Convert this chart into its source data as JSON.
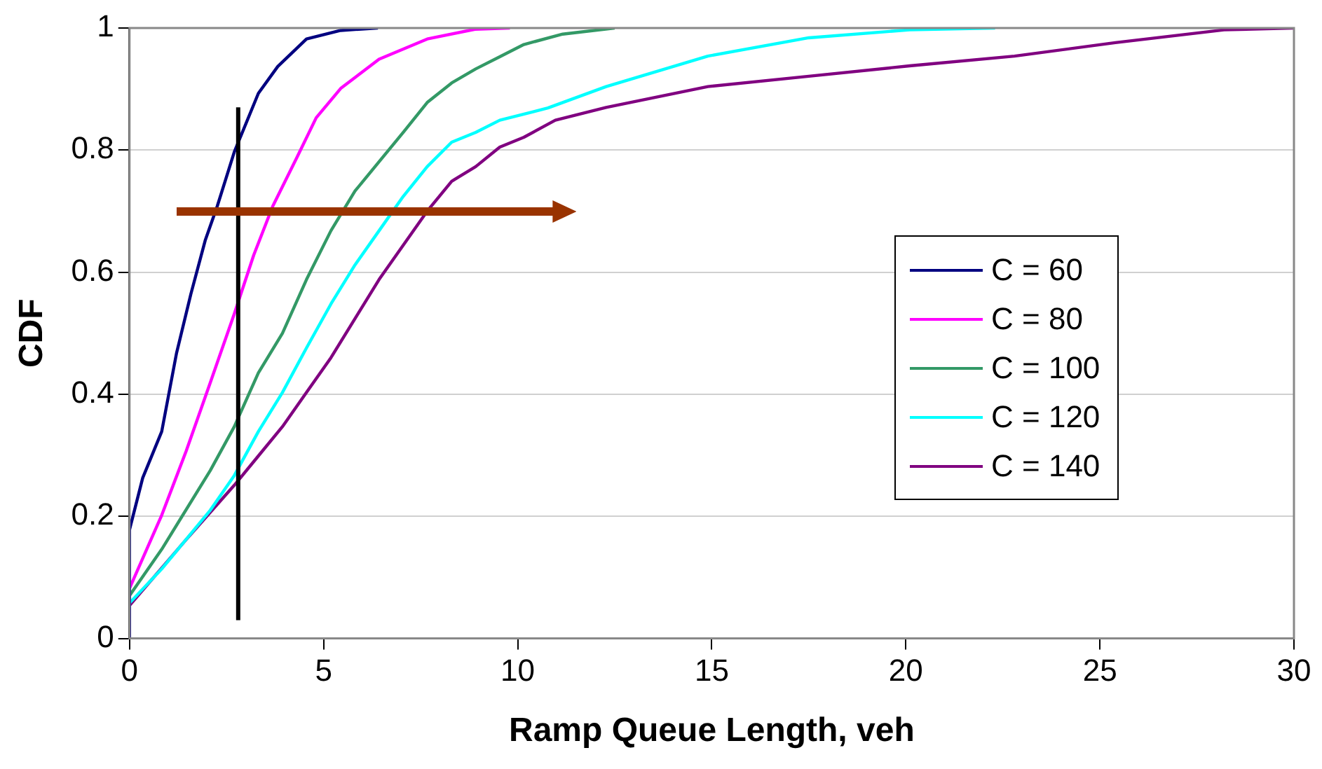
{
  "chart_data": {
    "type": "line",
    "xlabel": "Ramp Queue Length, veh",
    "ylabel": "CDF",
    "xlim": [
      0,
      30
    ],
    "xticks": [
      0,
      5,
      10,
      15,
      20,
      25,
      30
    ],
    "ylim": [
      0,
      1
    ],
    "yticks": [
      0,
      0.2,
      0.4,
      0.6,
      0.8,
      1
    ],
    "grid": "y",
    "legend": "right",
    "marker": "none",
    "line_style": "solid",
    "ref_lines": [
      {
        "axis": "x",
        "value": 2.8,
        "color": "#000000"
      }
    ],
    "series": [
      {
        "name": "C = 60",
        "color": "#000080",
        "x": [
          0,
          0,
          0.34,
          0.83,
          1.21,
          1.58,
          1.95,
          2.26,
          2.7,
          3.32,
          3.82,
          4.56,
          5.44,
          6.4
        ],
        "values": [
          0,
          0.178,
          0.263,
          0.339,
          0.467,
          0.564,
          0.652,
          0.708,
          0.797,
          0.893,
          0.937,
          0.982,
          0.996,
          1
        ]
      },
      {
        "name": "C = 80",
        "color": "#ff00ff",
        "x": [
          0,
          0,
          0.83,
          1.46,
          2.08,
          2.7,
          3.2,
          3.69,
          4.32,
          4.81,
          5.44,
          6.43,
          7.67,
          8.9,
          9.8
        ],
        "values": [
          0,
          0.082,
          0.202,
          0.307,
          0.419,
          0.532,
          0.628,
          0.708,
          0.789,
          0.853,
          0.901,
          0.949,
          0.982,
          0.998,
          1
        ]
      },
      {
        "name": "C = 100",
        "color": "#339966",
        "x": [
          0,
          0,
          0.83,
          2.08,
          2.7,
          3.32,
          3.94,
          4.56,
          5.19,
          5.81,
          6.43,
          7.05,
          7.67,
          8.3,
          8.92,
          9.54,
          10.16,
          11.16,
          12.5
        ],
        "values": [
          0,
          0.07,
          0.146,
          0.275,
          0.347,
          0.435,
          0.5,
          0.588,
          0.668,
          0.733,
          0.781,
          0.829,
          0.878,
          0.91,
          0.933,
          0.953,
          0.973,
          0.99,
          1
        ]
      },
      {
        "name": "C = 120",
        "color": "#00ffff",
        "x": [
          0,
          0,
          0.83,
          2.08,
          2.7,
          3.32,
          3.94,
          4.56,
          5.19,
          5.81,
          6.43,
          7.05,
          7.67,
          8.3,
          8.92,
          9.54,
          10.78,
          12.28,
          14.9,
          17.5,
          20.1,
          22.3
        ],
        "values": [
          0,
          0.058,
          0.114,
          0.21,
          0.267,
          0.339,
          0.403,
          0.476,
          0.548,
          0.612,
          0.668,
          0.724,
          0.773,
          0.813,
          0.829,
          0.849,
          0.869,
          0.904,
          0.954,
          0.984,
          0.997,
          1
        ]
      },
      {
        "name": "C = 140",
        "color": "#800080",
        "x": [
          0,
          0,
          1.46,
          2.7,
          3.32,
          3.94,
          4.56,
          5.19,
          5.81,
          6.43,
          7.05,
          7.67,
          8.3,
          8.92,
          9.54,
          10.16,
          10.97,
          12.28,
          14.9,
          17.5,
          20.1,
          22.8,
          25.4,
          28.2,
          30
        ],
        "values": [
          0,
          0.054,
          0.162,
          0.251,
          0.299,
          0.347,
          0.403,
          0.46,
          0.524,
          0.588,
          0.644,
          0.7,
          0.749,
          0.773,
          0.805,
          0.821,
          0.849,
          0.87,
          0.904,
          0.921,
          0.938,
          0.954,
          0.976,
          0.997,
          1
        ]
      }
    ]
  }
}
